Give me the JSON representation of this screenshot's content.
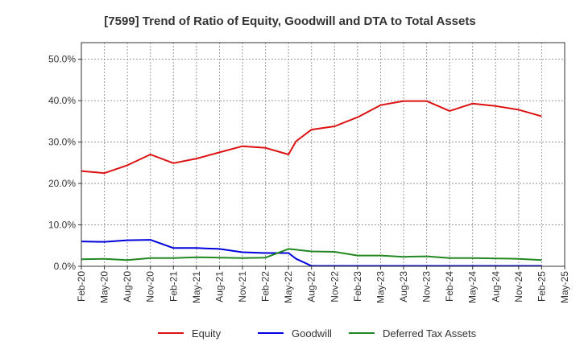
{
  "chart_data": {
    "type": "line",
    "title": "[7599]  Trend of Ratio of Equity, Goodwill and DTA to Total Assets",
    "xlabel": "",
    "ylabel": "",
    "ylim": [
      0,
      54
    ],
    "yticks": [
      0,
      10,
      20,
      30,
      40,
      50
    ],
    "ytick_labels": [
      "0.0%",
      "10.0%",
      "20.0%",
      "30.0%",
      "40.0%",
      "50.0%"
    ],
    "x_labels": [
      "Feb-20",
      "May-20",
      "Aug-20",
      "Nov-20",
      "Feb-21",
      "May-21",
      "Aug-21",
      "Nov-21",
      "Feb-22",
      "May-22",
      "Aug-22",
      "Nov-22",
      "Feb-23",
      "May-23",
      "Aug-23",
      "Nov-23",
      "Feb-24",
      "May-24",
      "Aug-24",
      "Nov-24",
      "Feb-25",
      "May-25"
    ],
    "x": [
      "Feb-20",
      "May-20",
      "Aug-20",
      "Nov-20",
      "Feb-21",
      "May-21",
      "Aug-21",
      "Nov-21",
      "Feb-22",
      "May-22",
      "Jun-22",
      "Aug-22",
      "Nov-22",
      "Feb-23",
      "May-23",
      "Aug-23",
      "Nov-23",
      "Feb-24",
      "May-24",
      "Aug-24",
      "Nov-24",
      "Feb-25"
    ],
    "x_index": [
      0,
      1,
      2,
      3,
      4,
      5,
      6,
      7,
      8,
      9,
      9.33,
      10,
      11,
      12,
      13,
      14,
      15,
      16,
      17,
      18,
      19,
      20
    ],
    "grid": true,
    "legend_position": "bottom",
    "series": [
      {
        "name": "Equity",
        "color": "#dd1111",
        "values": [
          23.0,
          22.5,
          24.4,
          27.0,
          24.9,
          26.0,
          27.5,
          29.0,
          28.6,
          27.0,
          30.2,
          33.0,
          33.8,
          36.0,
          38.9,
          39.9,
          39.9,
          37.5,
          39.3,
          38.7,
          37.8,
          36.2
        ]
      },
      {
        "name": "Goodwill",
        "color": "#0000dd",
        "values": [
          6.0,
          5.9,
          6.3,
          6.4,
          4.4,
          4.4,
          4.2,
          3.4,
          3.2,
          3.2,
          1.8,
          0.1,
          0.1,
          0.1,
          0.1,
          0.1,
          0.1,
          0.1,
          0.1,
          0.1,
          0.1,
          0.1
        ]
      },
      {
        "name": "Deferred Tax Assets",
        "color": "#228822",
        "values": [
          1.7,
          1.8,
          1.5,
          2.0,
          2.0,
          2.2,
          2.1,
          2.0,
          2.1,
          4.2,
          4.0,
          3.6,
          3.5,
          2.6,
          2.6,
          2.3,
          2.4,
          2.0,
          2.0,
          1.9,
          1.8,
          1.5
        ]
      }
    ]
  }
}
